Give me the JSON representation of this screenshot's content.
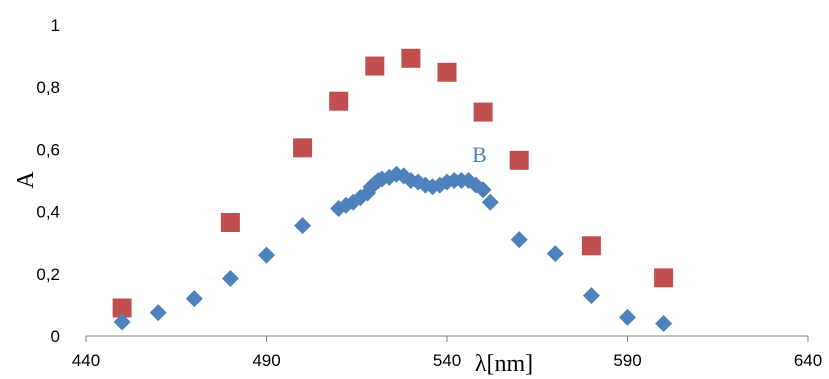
{
  "chart_data": {
    "type": "scatter",
    "xlabel": "λ[nm]",
    "ylabel": "A",
    "xlim": [
      440,
      640
    ],
    "ylim": [
      0,
      1
    ],
    "x_ticks": [
      440,
      490,
      540,
      590,
      640
    ],
    "y_ticks": [
      0,
      0.2,
      0.4,
      0.6,
      0.8,
      1
    ],
    "x_tick_labels": [
      "440",
      "490",
      "540",
      "590",
      "640"
    ],
    "y_tick_labels": [
      "0",
      "0,2",
      "0,4",
      "0,6",
      "0,8",
      "1"
    ],
    "grid": false,
    "series": [
      {
        "name": "",
        "marker": "square",
        "color": "#C0504D",
        "points": [
          [
            450,
            0.09
          ],
          [
            480,
            0.365
          ],
          [
            500,
            0.605
          ],
          [
            510,
            0.755
          ],
          [
            520,
            0.868
          ],
          [
            530,
            0.893
          ],
          [
            540,
            0.848
          ],
          [
            550,
            0.72
          ],
          [
            560,
            0.565
          ],
          [
            580,
            0.29
          ],
          [
            600,
            0.187
          ]
        ]
      },
      {
        "name": "",
        "marker": "diamond",
        "color": "#4F81BD",
        "points": [
          [
            450,
            0.045
          ],
          [
            460,
            0.075
          ],
          [
            470,
            0.12
          ],
          [
            480,
            0.185
          ],
          [
            490,
            0.26
          ],
          [
            500,
            0.355
          ],
          [
            510,
            0.41
          ],
          [
            512,
            0.42
          ],
          [
            514,
            0.43
          ],
          [
            516,
            0.445
          ],
          [
            518,
            0.46
          ],
          [
            519,
            0.48
          ],
          [
            520,
            0.49
          ],
          [
            521,
            0.5
          ],
          [
            522,
            0.505
          ],
          [
            524,
            0.51
          ],
          [
            526,
            0.52
          ],
          [
            528,
            0.515
          ],
          [
            530,
            0.5
          ],
          [
            532,
            0.495
          ],
          [
            534,
            0.485
          ],
          [
            536,
            0.48
          ],
          [
            538,
            0.485
          ],
          [
            540,
            0.495
          ],
          [
            542,
            0.5
          ],
          [
            544,
            0.5
          ],
          [
            546,
            0.5
          ],
          [
            548,
            0.485
          ],
          [
            550,
            0.47
          ],
          [
            552,
            0.43
          ],
          [
            560,
            0.31
          ],
          [
            570,
            0.265
          ],
          [
            580,
            0.13
          ],
          [
            590,
            0.06
          ],
          [
            600,
            0.04
          ]
        ]
      }
    ],
    "annotations": [
      {
        "text": "B",
        "x": 549,
        "y": 0.56,
        "color": "#4F81BD"
      }
    ]
  }
}
